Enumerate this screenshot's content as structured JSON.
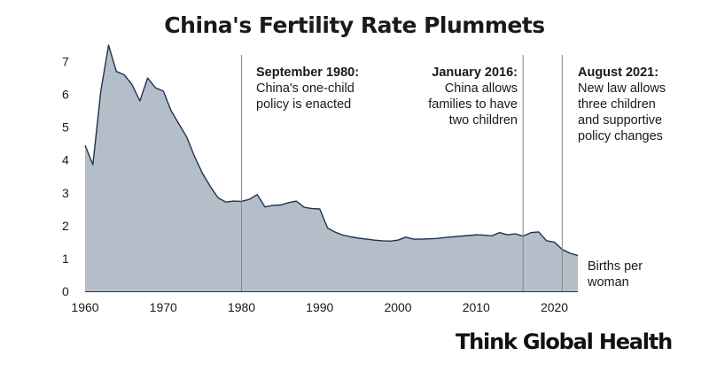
{
  "title": "China's Fertility Rate Plummets",
  "brand": "Think Global Health",
  "unit_label": "Births per woman",
  "annotations": [
    {
      "year": 1980,
      "bold": "September 1980:",
      "text": " China's one-child policy is enacted"
    },
    {
      "year": 2016,
      "bold": "January 2016:",
      "text": " China allows families to have two children"
    },
    {
      "year": 2021,
      "bold": "August 2021:",
      "text": " New law allows three children and supportive policy changes"
    }
  ],
  "colors": {
    "area": "#b4bec9",
    "line": "#1e3350",
    "rule": "#888888"
  },
  "chart_data": {
    "type": "area",
    "title": "China's Fertility Rate Plummets",
    "xlabel": "",
    "ylabel": "Births per woman",
    "xlim": [
      1960,
      2023
    ],
    "ylim": [
      0,
      7.5
    ],
    "xticks": [
      1960,
      1970,
      1980,
      1990,
      2000,
      2010,
      2020
    ],
    "yticks": [
      0,
      1,
      2,
      3,
      4,
      5,
      6,
      7
    ],
    "grid": false,
    "x": [
      1960,
      1961,
      1962,
      1963,
      1964,
      1965,
      1966,
      1967,
      1968,
      1969,
      1970,
      1971,
      1972,
      1973,
      1974,
      1975,
      1976,
      1977,
      1978,
      1979,
      1980,
      1981,
      1982,
      1983,
      1984,
      1985,
      1986,
      1987,
      1988,
      1989,
      1990,
      1991,
      1992,
      1993,
      1994,
      1995,
      1996,
      1997,
      1998,
      1999,
      2000,
      2001,
      2002,
      2003,
      2004,
      2005,
      2006,
      2007,
      2008,
      2009,
      2010,
      2011,
      2012,
      2013,
      2014,
      2015,
      2016,
      2017,
      2018,
      2019,
      2020,
      2021,
      2022,
      2023
    ],
    "values": [
      4.45,
      3.86,
      6.09,
      7.5,
      6.7,
      6.6,
      6.3,
      5.8,
      6.5,
      6.2,
      6.1,
      5.5,
      5.1,
      4.7,
      4.1,
      3.6,
      3.2,
      2.85,
      2.72,
      2.75,
      2.74,
      2.8,
      2.95,
      2.57,
      2.62,
      2.63,
      2.7,
      2.75,
      2.56,
      2.52,
      2.51,
      1.93,
      1.8,
      1.71,
      1.66,
      1.62,
      1.59,
      1.56,
      1.54,
      1.53,
      1.56,
      1.65,
      1.59,
      1.59,
      1.6,
      1.61,
      1.64,
      1.66,
      1.68,
      1.7,
      1.72,
      1.71,
      1.69,
      1.79,
      1.72,
      1.75,
      1.68,
      1.79,
      1.81,
      1.54,
      1.5,
      1.28,
      1.16,
      1.09
    ]
  }
}
